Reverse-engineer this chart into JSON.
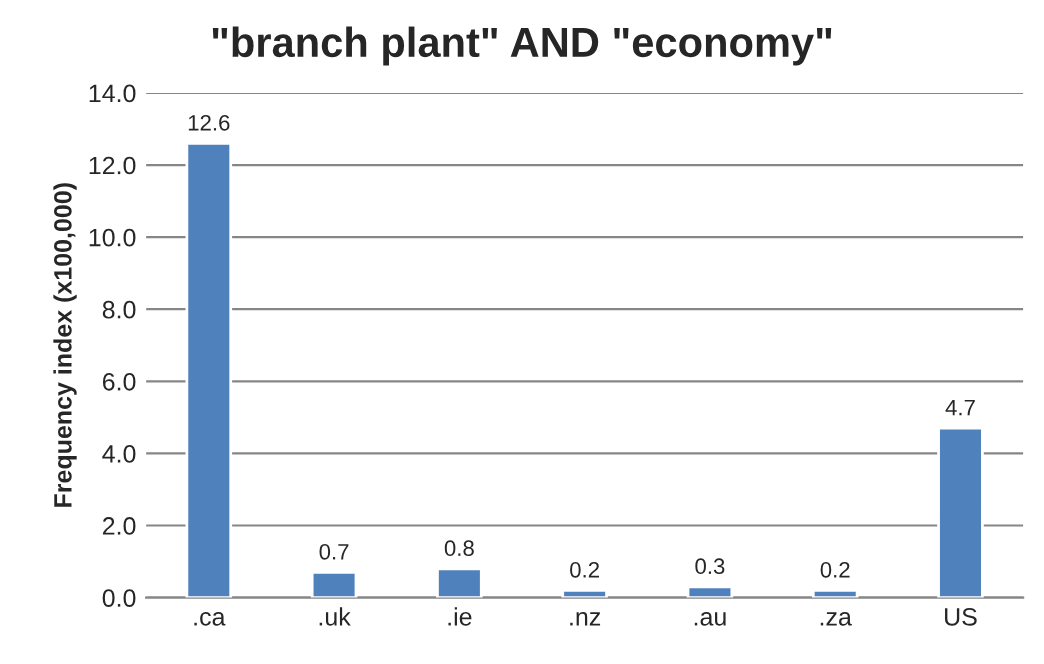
{
  "chart_data": {
    "type": "bar",
    "title": "\"branch plant\" AND \"economy\"",
    "ylabel": "Frequency index (x100,000)",
    "categories": [
      ".ca",
      ".uk",
      ".ie",
      ".nz",
      ".au",
      ".za",
      "US"
    ],
    "values": [
      12.6,
      0.7,
      0.8,
      0.2,
      0.3,
      0.2,
      4.7
    ],
    "color": "#4f81bd",
    "data_labels": true,
    "grid": "y",
    "ylim": [
      0,
      14
    ],
    "yticks": [
      {
        "value": 0,
        "label": "0.0"
      },
      {
        "value": 2,
        "label": "2.0"
      },
      {
        "value": 4,
        "label": "4.0"
      },
      {
        "value": 6,
        "label": "6.0"
      },
      {
        "value": 8,
        "label": "8.0"
      },
      {
        "value": 10,
        "label": "10.0"
      },
      {
        "value": 12,
        "label": "12.0"
      },
      {
        "value": 14,
        "label": "14.0"
      }
    ]
  }
}
